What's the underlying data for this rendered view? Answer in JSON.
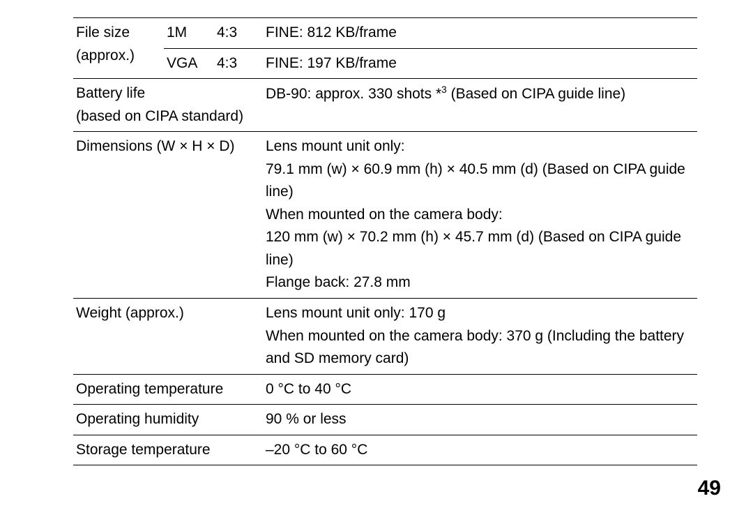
{
  "rows": {
    "filesize": {
      "label_top": "File size",
      "label_bottom": "(approx.)",
      "r1_c2": "1M",
      "r1_c3": "4:3",
      "r1_c4": "FINE: 812 KB/frame",
      "r2_c2": "VGA",
      "r2_c3": "4:3",
      "r2_c4": "FINE: 197 KB/frame"
    },
    "battery": {
      "label": "Battery life\n(based on CIPA standard)",
      "value_pre": "DB-90: approx. 330 shots *",
      "value_sup": "3",
      "value_post": " (Based on CIPA guide line)"
    },
    "dimensions": {
      "label": "Dimensions (W × H × D)",
      "value": "Lens mount unit only:\n79.1 mm (w) × 60.9 mm (h) × 40.5 mm (d) (Based on CIPA guide line)\nWhen mounted on the camera body:\n120 mm (w) × 70.2 mm (h) × 45.7 mm (d) (Based on CIPA guide line)\nFlange back: 27.8 mm"
    },
    "weight": {
      "label": "Weight (approx.)",
      "value": "Lens mount unit only: 170 g\nWhen mounted on the camera body: 370 g (Including the battery and SD memory card)"
    },
    "optemp": {
      "label": "Operating temperature",
      "value": "0 °C to 40 °C"
    },
    "ophumidity": {
      "label": "Operating humidity",
      "value": "90 % or less"
    },
    "storagetemp": {
      "label": "Storage temperature",
      "value": "–20 °C to 60 °C"
    }
  },
  "page_number": "49"
}
